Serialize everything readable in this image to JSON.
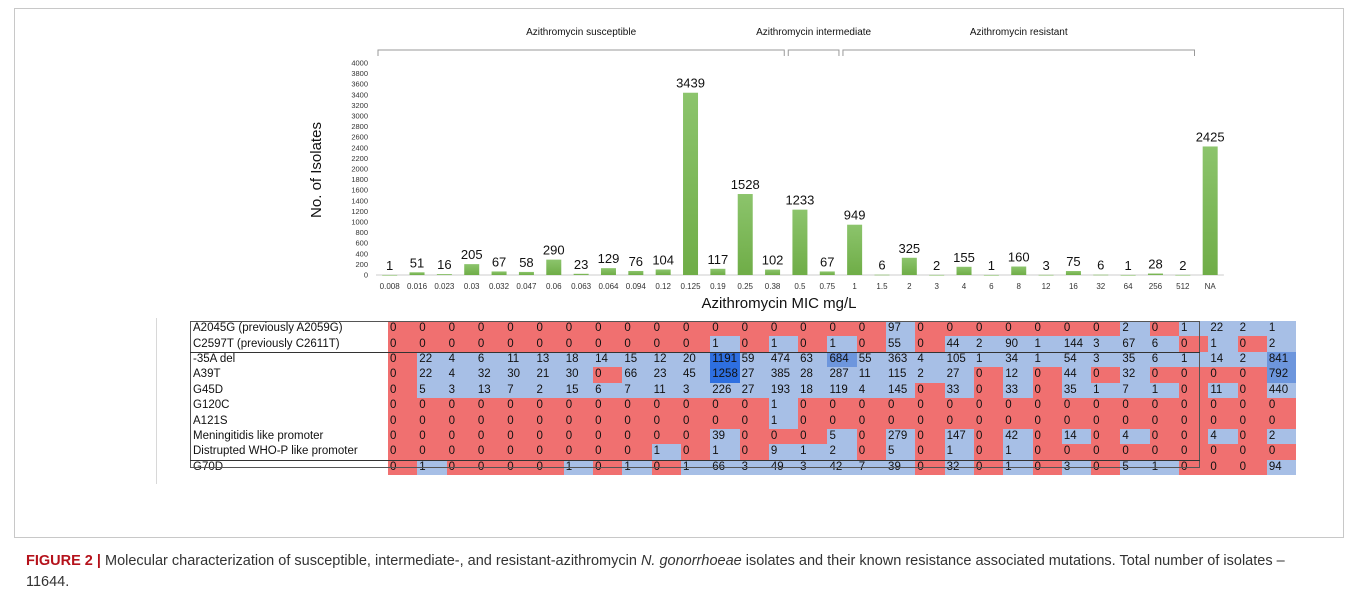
{
  "chart_data": {
    "type": "bar",
    "xlabel": "Azithromycin MIC mg/L",
    "ylabel": "No. of Isolates",
    "ylim": [
      0,
      4000
    ],
    "y_ticks": [
      0,
      200,
      400,
      600,
      800,
      1000,
      1200,
      1400,
      1600,
      1800,
      2000,
      2200,
      2400,
      2600,
      2800,
      3000,
      3200,
      3400,
      3600,
      3800,
      4000
    ],
    "categories": [
      "0.008",
      "0.016",
      "0.023",
      "0.03",
      "0.032",
      "0.047",
      "0.06",
      "0.063",
      "0.064",
      "0.094",
      "0.12",
      "0.125",
      "0.19",
      "0.25",
      "0.38",
      "0.5",
      "0.75",
      "1",
      "1.5",
      "2",
      "3",
      "4",
      "6",
      "8",
      "12",
      "16",
      "32",
      "64",
      "256",
      "512",
      "NA"
    ],
    "values": [
      1,
      51,
      16,
      205,
      67,
      58,
      290,
      23,
      129,
      76,
      104,
      3439,
      117,
      1528,
      102,
      1233,
      67,
      949,
      6,
      325,
      2,
      155,
      1,
      160,
      3,
      75,
      6,
      1,
      28,
      2,
      2425
    ],
    "bar_color": "#6fad47",
    "grid": false,
    "groups": [
      {
        "label": "Azithromycin susceptible",
        "from": 0,
        "to": 15
      },
      {
        "label": "Azithromycin intermediate",
        "from": 15,
        "to": 17
      },
      {
        "label": "Azithromycin resistant",
        "from": 17,
        "to": 30
      }
    ]
  },
  "heatmap": {
    "colors": {
      "zero": "#f07070",
      "low": "#a7bfe6",
      "mid": "#6d96dd",
      "high": "#2e6fe0"
    },
    "rows": [
      {
        "label": "A2045G (previously A2059G)",
        "values": [
          0,
          0,
          0,
          0,
          0,
          0,
          0,
          0,
          0,
          0,
          0,
          0,
          0,
          0,
          0,
          0,
          0,
          97,
          0,
          0,
          0,
          0,
          0,
          0,
          0,
          2,
          0,
          1,
          22,
          2,
          1
        ]
      },
      {
        "label": "C2597T (previously C2611T)",
        "values": [
          0,
          0,
          0,
          0,
          0,
          0,
          0,
          0,
          0,
          0,
          0,
          1,
          0,
          1,
          0,
          1,
          0,
          55,
          0,
          44,
          2,
          90,
          1,
          144,
          3,
          67,
          6,
          0,
          1,
          0,
          2
        ]
      },
      {
        "label": " -35A del",
        "values": [
          0,
          22,
          4,
          6,
          11,
          13,
          18,
          14,
          15,
          12,
          20,
          1191,
          59,
          474,
          63,
          684,
          55,
          363,
          4,
          105,
          1,
          34,
          1,
          54,
          3,
          35,
          6,
          1,
          14,
          2,
          841
        ]
      },
      {
        "label": "A39T",
        "values": [
          0,
          22,
          4,
          32,
          30,
          21,
          30,
          0,
          66,
          23,
          45,
          1258,
          27,
          385,
          28,
          287,
          11,
          115,
          2,
          27,
          0,
          12,
          0,
          44,
          0,
          32,
          0,
          0,
          0,
          0,
          792
        ]
      },
      {
        "label": "G45D",
        "values": [
          0,
          5,
          3,
          13,
          7,
          2,
          15,
          6,
          7,
          11,
          3,
          226,
          27,
          193,
          18,
          119,
          4,
          145,
          0,
          33,
          0,
          33,
          0,
          35,
          1,
          7,
          1,
          0,
          11,
          0,
          440
        ]
      },
      {
        "label": "G120C",
        "values": [
          0,
          0,
          0,
          0,
          0,
          0,
          0,
          0,
          0,
          0,
          0,
          0,
          0,
          1,
          0,
          0,
          0,
          0,
          0,
          0,
          0,
          0,
          0,
          0,
          0,
          0,
          0,
          0,
          0,
          0,
          0
        ]
      },
      {
        "label": "A121S",
        "values": [
          0,
          0,
          0,
          0,
          0,
          0,
          0,
          0,
          0,
          0,
          0,
          0,
          0,
          1,
          0,
          0,
          0,
          0,
          0,
          0,
          0,
          0,
          0,
          0,
          0,
          0,
          0,
          0,
          0,
          0,
          0
        ]
      },
      {
        "label": "Meningitidis like promoter",
        "values": [
          0,
          0,
          0,
          0,
          0,
          0,
          0,
          0,
          0,
          0,
          0,
          39,
          0,
          0,
          0,
          5,
          0,
          279,
          0,
          147,
          0,
          42,
          0,
          14,
          0,
          4,
          0,
          0,
          4,
          0,
          2
        ]
      },
      {
        "label": "Distrupted WHO-P like promoter",
        "values": [
          0,
          0,
          0,
          0,
          0,
          0,
          0,
          0,
          0,
          1,
          0,
          1,
          0,
          9,
          1,
          2,
          0,
          5,
          0,
          1,
          0,
          1,
          0,
          0,
          0,
          0,
          0,
          0,
          0,
          0,
          0
        ]
      },
      {
        "label": "G70D",
        "values": [
          0,
          1,
          0,
          0,
          0,
          0,
          1,
          0,
          1,
          0,
          1,
          66,
          3,
          49,
          3,
          42,
          7,
          39,
          0,
          32,
          0,
          1,
          0,
          3,
          0,
          5,
          1,
          0,
          0,
          0,
          94
        ]
      }
    ]
  },
  "caption": {
    "figure_label": "FIGURE 2 |",
    "text_before_italic": " Molecular characterization of susceptible, intermediate-, and resistant-azithromycin ",
    "italic": "N. gonorrhoeae",
    "text_after_italic": " isolates and their known resistance associated mutations. Total number of isolates – 11644."
  }
}
